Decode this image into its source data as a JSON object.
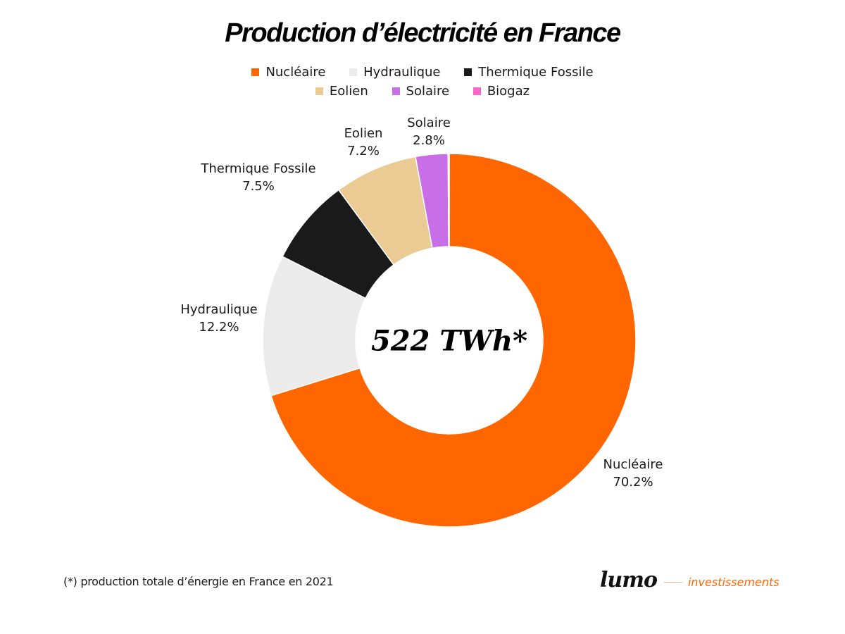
{
  "chart_data": {
    "type": "pie",
    "variant": "donut",
    "title": "Production d’électricité en France",
    "center_label": "522 TWh*",
    "legend_position": "top",
    "categories": [
      "Nucléaire",
      "Hydraulique",
      "Thermique Fossile",
      "Eolien",
      "Solaire",
      "Biogaz"
    ],
    "values": [
      70.2,
      12.2,
      7.5,
      7.2,
      2.8,
      0.1
    ],
    "data_labels": [
      "70.2%",
      "12.2%",
      "7.5%",
      "7.2%",
      "2.8%",
      ""
    ],
    "colors": [
      "#ff6600",
      "#ebebeb",
      "#1a1a1a",
      "#eacb94",
      "#c86ee6",
      "#ff66cc"
    ],
    "unit": "%"
  },
  "footnote": "(*) production totale d’énergie en France en 2021",
  "logo": {
    "brand": "lumo",
    "tagline": "investissements"
  }
}
